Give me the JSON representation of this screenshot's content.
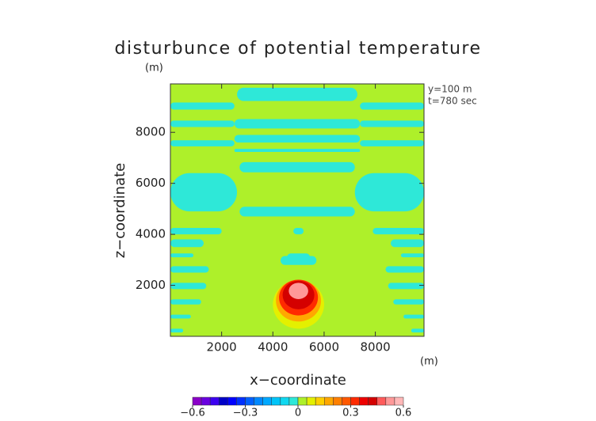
{
  "chart_data": {
    "type": "contour",
    "title": "disturbunce of potential temperature",
    "unit_label": "(m)",
    "annotations": [
      "y=100 m",
      "t=780 sec"
    ],
    "xlabel": "x−coordinate",
    "ylabel": "z−coordinate",
    "x_unit_label": "(m)",
    "xlim": [
      0,
      9900
    ],
    "ylim": [
      0,
      9900
    ],
    "xticks": [
      2000,
      4000,
      6000,
      8000
    ],
    "yticks": [
      2000,
      4000,
      6000,
      8000
    ],
    "colorbar": {
      "levels": [
        -0.6,
        -0.55,
        -0.5,
        -0.45,
        -0.4,
        -0.35,
        -0.3,
        -0.25,
        -0.2,
        -0.15,
        -0.1,
        -0.05,
        0,
        0.05,
        0.1,
        0.15,
        0.2,
        0.25,
        0.3,
        0.35,
        0.4,
        0.45,
        0.5,
        0.55,
        0.6
      ],
      "colors": [
        "#8a00c8",
        "#6a00e0",
        "#3c00f0",
        "#0000c8",
        "#0000ff",
        "#0030ff",
        "#0060ff",
        "#0088ff",
        "#00a8ff",
        "#00c4f8",
        "#10d8f0",
        "#2ee8d8",
        "#aef02a",
        "#e4f000",
        "#ffd000",
        "#ffa800",
        "#ff8000",
        "#ff5800",
        "#ff2a00",
        "#ee0000",
        "#d40000",
        "#ff5a5a",
        "#ff9898",
        "#ffb8b8"
      ],
      "ticks": [
        {
          "value": -0.6,
          "label": "−0.6"
        },
        {
          "value": -0.3,
          "label": "−0.3"
        },
        0,
        0.3,
        0.6
      ]
    },
    "field": {
      "background": 0.02,
      "anomaly": -0.02,
      "bands": [
        [
          2600,
          7300,
          9230,
          9750
        ],
        [
          2500,
          7400,
          8150,
          8520
        ],
        [
          2500,
          7400,
          7600,
          7900
        ],
        [
          2500,
          7400,
          7230,
          7350
        ],
        [
          2700,
          7200,
          6430,
          6830
        ],
        [
          0,
          2500,
          8890,
          9170
        ],
        [
          7400,
          9900,
          8890,
          9170
        ],
        [
          0,
          2500,
          8210,
          8460
        ],
        [
          7400,
          9900,
          8210,
          8460
        ],
        [
          0,
          2500,
          7450,
          7690
        ],
        [
          7400,
          9900,
          7450,
          7690
        ],
        [
          0,
          2600,
          4900,
          6400
        ],
        [
          7200,
          9900,
          4900,
          6400
        ],
        [
          2700,
          7200,
          4700,
          5080
        ],
        [
          0,
          2000,
          4000,
          4250
        ],
        [
          7900,
          9900,
          4000,
          4250
        ],
        [
          0,
          1300,
          3500,
          3800
        ],
        [
          0,
          900,
          3100,
          3250
        ],
        [
          0,
          1500,
          2500,
          2750
        ],
        [
          0,
          1400,
          1850,
          2100
        ],
        [
          0,
          1200,
          1250,
          1450
        ],
        [
          0,
          800,
          700,
          850
        ],
        [
          0,
          500,
          150,
          300
        ],
        [
          8600,
          9900,
          3500,
          3800
        ],
        [
          9000,
          9900,
          3100,
          3250
        ],
        [
          8400,
          9900,
          2500,
          2750
        ],
        [
          8500,
          9900,
          1850,
          2100
        ],
        [
          8700,
          9900,
          1250,
          1450
        ],
        [
          9100,
          9900,
          700,
          850
        ],
        [
          9400,
          9900,
          150,
          300
        ],
        [
          4800,
          5200,
          4000,
          4250
        ],
        [
          4300,
          5700,
          2800,
          3150
        ],
        [
          4550,
          5450,
          2950,
          3250
        ]
      ],
      "blobs": [
        {
          "center": [
            5000,
            1250
          ],
          "radius": [
            1000,
            950
          ],
          "value": 0.07
        },
        {
          "center": [
            5000,
            1400
          ],
          "radius": [
            880,
            820
          ],
          "value": 0.17
        },
        {
          "center": [
            5000,
            1520
          ],
          "radius": [
            760,
            700
          ],
          "value": 0.32
        },
        {
          "center": [
            5000,
            1620
          ],
          "radius": [
            620,
            560
          ],
          "value": 0.42
        },
        {
          "center": [
            5000,
            1780
          ],
          "radius": [
            380,
            320
          ],
          "value": 0.52
        }
      ]
    }
  }
}
